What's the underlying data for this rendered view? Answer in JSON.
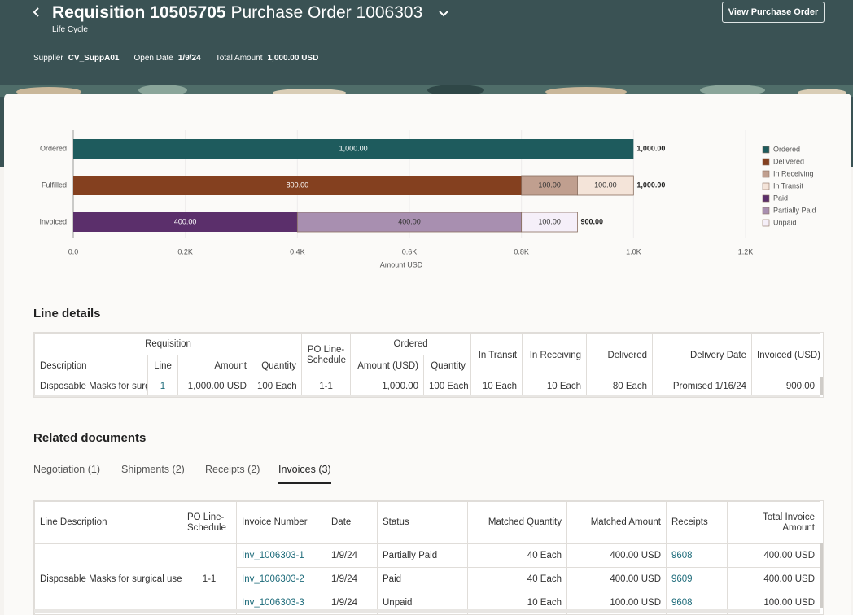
{
  "header": {
    "title": "Requisition 10505705",
    "subtitle": "Purchase Order 1006303",
    "caption": "Life Cycle",
    "button": "View Purchase Order",
    "meta": [
      {
        "label": "Supplier",
        "value": "CV_SuppA01"
      },
      {
        "label": "Open Date",
        "value": "1/9/24"
      },
      {
        "label": "Total Amount",
        "value": "1,000.00 USD"
      }
    ]
  },
  "chart": {
    "type": "bar",
    "orientation": "horizontal",
    "stacked": true,
    "categories": [
      "Ordered",
      "Fulfilled",
      "Invoiced"
    ],
    "series": [
      {
        "name": "Ordered",
        "color": "#1e5b5d",
        "values": [
          1000,
          null,
          null
        ],
        "value_labels": [
          "1,000.00",
          null,
          null
        ]
      },
      {
        "name": "Delivered",
        "color": "#84401f",
        "values": [
          null,
          800,
          null
        ],
        "value_labels": [
          null,
          "800.00",
          null
        ]
      },
      {
        "name": "In Receiving",
        "color": "#c09f8f",
        "values": [
          null,
          100,
          null
        ],
        "value_labels": [
          null,
          "100.00",
          null
        ]
      },
      {
        "name": "In Transit",
        "color": "#f4e4d9",
        "values": [
          null,
          100,
          null
        ],
        "value_labels": [
          null,
          "100.00",
          null
        ]
      },
      {
        "name": "Paid",
        "color": "#5b2f6b",
        "values": [
          null,
          null,
          400
        ],
        "value_labels": [
          null,
          null,
          "400.00"
        ]
      },
      {
        "name": "Partially Paid",
        "color": "#a88fb0",
        "values": [
          null,
          null,
          400
        ],
        "value_labels": [
          null,
          null,
          "400.00"
        ]
      },
      {
        "name": "Unpaid",
        "color": "#f5eff9",
        "values": [
          null,
          null,
          100
        ],
        "value_labels": [
          null,
          null,
          "100.00"
        ]
      }
    ],
    "totals": {
      "values": [
        1000,
        1000,
        900
      ],
      "value_labels": [
        "1,000.00",
        "1,000.00",
        "900.00"
      ]
    },
    "xlim": [
      0,
      1200
    ],
    "xticks": [
      {
        "value": 0,
        "label": "0.0"
      },
      {
        "value": 200,
        "label": "0.2K"
      },
      {
        "value": 400,
        "label": "0.4K"
      },
      {
        "value": 600,
        "label": "0.6K"
      },
      {
        "value": 800,
        "label": "0.8K"
      },
      {
        "value": 1000,
        "label": "1.0K"
      },
      {
        "value": 1200,
        "label": "1.2K"
      }
    ],
    "x_label": "Amount USD",
    "legend": "right"
  },
  "line_details": {
    "title": "Line details",
    "requisition_group": "Requisition",
    "ordered_group": "Ordered",
    "columns": [
      "Description",
      "Line",
      "Amount",
      "Quantity",
      "PO Line-Schedule",
      "Amount (USD)",
      "Quantity",
      "In Transit",
      "In Receiving",
      "Delivered",
      "Delivery Date",
      "Invoiced (USD)"
    ],
    "rows": [
      [
        "Disposable Masks for surgical use",
        "1",
        "1,000.00 USD",
        "100 Each",
        "1-1",
        "1,000.00",
        "100 Each",
        "10 Each",
        "10 Each",
        "80 Each",
        "Promised 1/16/24",
        "900.00"
      ]
    ]
  },
  "related": {
    "title": "Related documents",
    "tabs": [
      "Negotiation (1)",
      "Shipments (2)",
      "Receipts (2)",
      "Invoices (3)"
    ],
    "active_tab": "Invoices (3)",
    "columns": [
      "Line Description",
      "PO Line-Schedule",
      "Invoice Number",
      "Date",
      "Status",
      "Matched Quantity",
      "Matched Amount",
      "Receipts",
      "Total Invoice Amount"
    ],
    "line_description": "Disposable Masks for surgical use",
    "po_line_schedule": "1-1",
    "rows": [
      [
        "Inv_1006303-1",
        "1/9/24",
        "Partially Paid",
        "40 Each",
        "400.00 USD",
        "9608",
        "400.00 USD"
      ],
      [
        "Inv_1006303-2",
        "1/9/24",
        "Paid",
        "40 Each",
        "400.00 USD",
        "9609",
        "400.00 USD"
      ],
      [
        "Inv_1006303-3",
        "1/9/24",
        "Unpaid",
        "10 Each",
        "100.00 USD",
        "9608",
        "100.00 USD"
      ]
    ]
  }
}
